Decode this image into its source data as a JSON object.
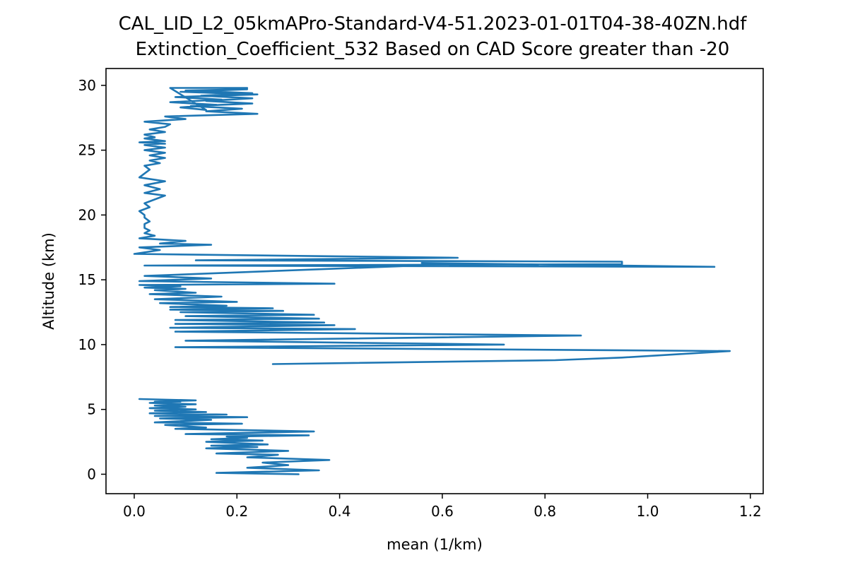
{
  "chart_data": {
    "type": "line",
    "title": "CAL_LID_L2_05kmAPro-Standard-V4-51.2023-01-01T04-38-40ZN.hdf",
    "subtitle": "Extinction_Coefficient_532 Based on CAD Score greater than -20",
    "xlabel": "mean (1/km)",
    "ylabel": "Altitude (km)",
    "xlim": [
      -0.055,
      1.225
    ],
    "ylim": [
      -1.5,
      31.3
    ],
    "xticks": [
      0.0,
      0.2,
      0.4,
      0.6,
      0.8,
      1.0,
      1.2
    ],
    "xtick_labels": [
      "0.0",
      "0.2",
      "0.4",
      "0.6",
      "0.8",
      "1.0",
      "1.2"
    ],
    "yticks": [
      0,
      5,
      10,
      15,
      20,
      25,
      30
    ],
    "ytick_labels": [
      "0",
      "5",
      "10",
      "15",
      "20",
      "25",
      "30"
    ],
    "grid": false,
    "line_color": "#1f77b4",
    "series": [
      {
        "x": [
          0.32,
          0.16,
          0.36,
          0.22,
          0.3,
          0.25,
          0.38,
          0.22,
          0.28,
          0.16,
          0.3,
          0.14,
          0.24,
          0.15,
          0.26,
          0.14,
          0.25,
          0.15,
          0.22,
          0.18,
          0.34,
          0.1,
          0.35,
          0.08,
          0.14,
          0.06,
          0.21,
          0.04,
          0.15,
          0.05,
          0.22,
          0.04,
          0.18,
          0.03,
          0.14,
          0.04,
          0.12,
          0.03,
          0.1,
          0.04,
          0.12,
          0.03,
          0.09,
          0.04,
          0.12,
          0.01
        ],
        "y": [
          0,
          0.1,
          0.3,
          0.5,
          0.7,
          0.9,
          1.1,
          1.3,
          1.5,
          1.6,
          1.8,
          2.0,
          2.1,
          2.2,
          2.3,
          2.5,
          2.6,
          2.7,
          2.8,
          2.9,
          3.0,
          3.1,
          3.3,
          3.5,
          3.6,
          3.8,
          3.9,
          4.0,
          4.2,
          4.3,
          4.4,
          4.5,
          4.6,
          4.7,
          4.8,
          4.9,
          5.0,
          5.1,
          5.2,
          5.3,
          5.4,
          5.5,
          5.6,
          5.6,
          5.7,
          5.8
        ]
      },
      {
        "x": [
          0.27,
          0.82,
          0.95,
          1.16,
          0.08,
          0.72,
          0.1,
          0.87,
          0.08,
          0.43,
          0.07,
          0.39,
          0.08,
          0.37,
          0.08,
          0.36,
          0.1,
          0.35,
          0.09,
          0.29,
          0.07,
          0.27,
          0.07,
          0.18,
          0.05,
          0.2,
          0.04,
          0.17,
          0.03,
          0.12,
          0.04,
          0.1,
          0.02,
          0.09,
          0.01,
          0.39,
          0.01,
          0.15,
          0.02,
          0.62,
          0.56,
          1.13,
          0.02,
          0.95,
          0.95,
          0.12,
          0.63,
          0.0,
          0.05,
          0.01,
          0.15,
          0.05,
          0.1,
          0.01,
          0.04,
          0.02,
          0.03,
          0.02,
          0.02,
          0.03,
          0.02,
          0.02,
          0.01,
          0.03,
          0.02,
          0.04,
          0.06,
          0.02,
          0.05,
          0.02,
          0.06,
          0.01,
          0.02,
          0.03,
          0.02,
          0.05,
          0.03,
          0.06,
          0.03,
          0.06,
          0.02,
          0.06,
          0.02,
          0.05,
          0.06,
          0.01,
          0.06,
          0.04,
          0.02,
          0.04,
          0.02,
          0.06,
          0.03,
          0.06,
          0.07,
          0.02,
          0.1,
          0.06,
          0.24,
          0.14,
          0.21,
          0.11,
          0.23,
          0.14,
          0.23,
          0.13,
          0.23,
          0.1,
          0.22,
          0.09,
          0.24,
          0.08,
          0.17,
          0.07,
          0.16,
          0.09,
          0.14,
          0.07,
          0.22
        ],
        "y": [
          8.5,
          8.8,
          9.0,
          9.5,
          9.8,
          10.0,
          10.3,
          10.7,
          11.0,
          11.2,
          11.3,
          11.5,
          11.6,
          11.7,
          11.9,
          12.0,
          12.2,
          12.3,
          12.5,
          12.6,
          12.7,
          12.8,
          12.9,
          13.0,
          13.2,
          13.3,
          13.5,
          13.7,
          13.9,
          14.0,
          14.2,
          14.3,
          14.4,
          14.5,
          14.6,
          14.7,
          14.9,
          15.1,
          15.3,
          16.2,
          16.3,
          16.0,
          16.1,
          16.2,
          16.4,
          16.5,
          16.7,
          17.0,
          17.3,
          17.5,
          17.7,
          17.8,
          18.0,
          18.2,
          18.4,
          18.6,
          18.8,
          19.0,
          19.3,
          19.5,
          19.8,
          20.0,
          20.3,
          20.6,
          20.9,
          21.2,
          21.5,
          21.7,
          22.0,
          22.3,
          22.6,
          22.9,
          23.2,
          23.5,
          23.8,
          24.0,
          24.2,
          24.4,
          24.6,
          24.8,
          25.0,
          25.2,
          25.4,
          25.5,
          25.5,
          25.6,
          25.7,
          25.8,
          25.9,
          26.0,
          26.2,
          26.4,
          26.6,
          26.8,
          27.0,
          27.2,
          27.4,
          27.6,
          27.8,
          28.0,
          28.2,
          28.4,
          28.6,
          28.8,
          29.0,
          29.2,
          29.4,
          29.6,
          29.7,
          29.5,
          29.3,
          29.1,
          28.9,
          28.7,
          28.5,
          28.3,
          28.1,
          29.8,
          29.8
        ]
      }
    ]
  }
}
